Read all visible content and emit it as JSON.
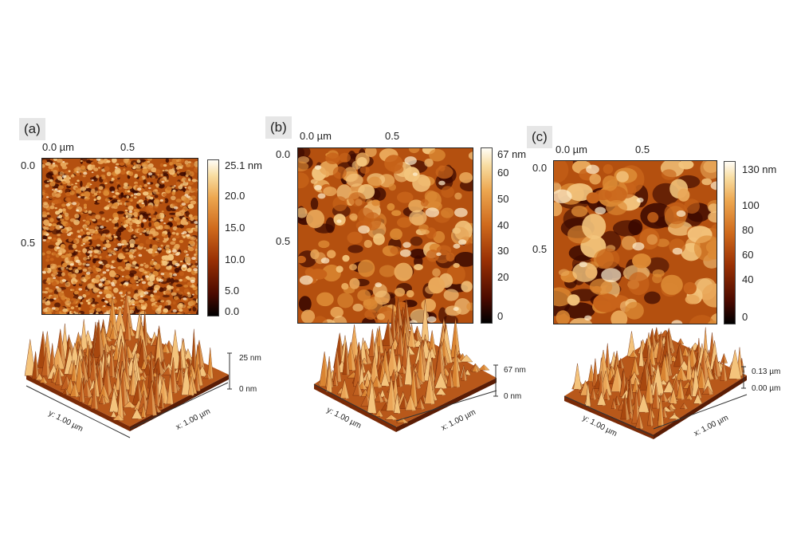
{
  "panels": [
    {
      "label": "(a)",
      "top_ticks": [
        "0.0 µm",
        "0.5"
      ],
      "left_ticks": [
        "0.0",
        "0.5"
      ],
      "colorbar_ticks": [
        "25.1 nm",
        "20.0",
        "15.0",
        "10.0",
        "5.0",
        "0.0"
      ],
      "z_scale": [
        "25 nm",
        "0 nm"
      ],
      "y_axis": "y: 1.00 µm",
      "x_axis": "x: 1.00 µm"
    },
    {
      "label": "(b)",
      "top_ticks": [
        "0.0 µm",
        "0.5"
      ],
      "left_ticks": [
        "0.0",
        "0.5"
      ],
      "colorbar_ticks": [
        "67 nm",
        "60",
        "50",
        "40",
        "30",
        "20",
        "0"
      ],
      "z_scale": [
        "67 nm",
        "0 nm"
      ],
      "y_axis": "y: 1.00 µm",
      "x_axis": "x: 1.00 µm"
    },
    {
      "label": "(c)",
      "top_ticks": [
        "0.0 µm",
        "0.5"
      ],
      "left_ticks": [
        "0.0",
        "0.5"
      ],
      "colorbar_ticks": [
        "130 nm",
        "100",
        "80",
        "60",
        "40",
        "0"
      ],
      "z_scale": [
        "0.13 µm",
        "0.00 µm"
      ],
      "y_axis": "y: 1.00 µm",
      "x_axis": "x: 1.00 µm"
    }
  ],
  "colors": {
    "dark": "#3a0800",
    "mid": "#b4500f",
    "light": "#f3c47c",
    "peak": "#fff1d2"
  }
}
